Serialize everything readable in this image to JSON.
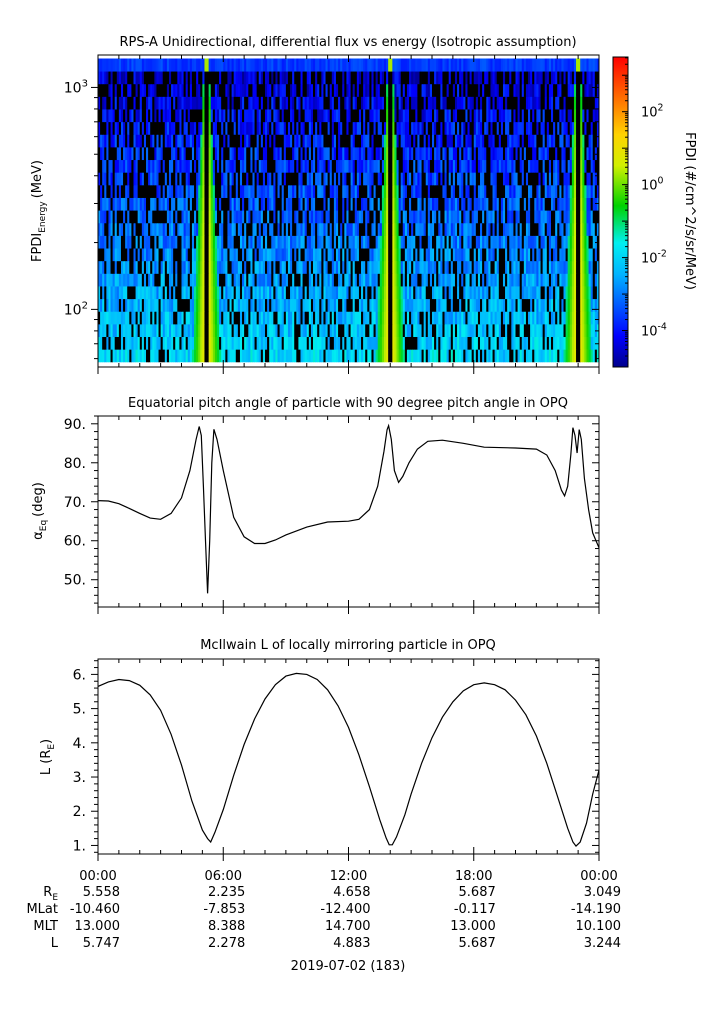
{
  "chart_data": [
    {
      "type": "heatmap",
      "title": "RPS-A Unidirectional, differential flux vs energy (Isotropic assumption)",
      "ylabel_main": "FPDI",
      "ylabel_sub": "Energy",
      "ylabel_unit": "(MeV)",
      "yscale": "log",
      "ylim": [
        55,
        1400
      ],
      "yticks": [
        {
          "value": 100,
          "base": "10",
          "exp": "2"
        },
        {
          "value": 1000,
          "base": "10",
          "exp": "3"
        }
      ],
      "xlim_hours": [
        0,
        24
      ],
      "energy_range": [
        58,
        1350
      ],
      "high_flux_times_hours": [
        5.2,
        14.0,
        23.0
      ],
      "colorbar": {
        "label": "FPDI (#/cm^2/s/sr/MeV)",
        "scale": "log",
        "range_log10": [
          -5,
          3.5
        ],
        "ticks": [
          {
            "value": -4,
            "base": "10",
            "exp": "-4"
          },
          {
            "value": -2,
            "base": "10",
            "exp": "-2"
          },
          {
            "value": 0,
            "base": "10",
            "exp": "0"
          },
          {
            "value": 2,
            "base": "10",
            "exp": "2"
          }
        ]
      }
    },
    {
      "type": "line",
      "title": "Equatorial pitch angle of particle with 90 degree pitch angle in OPQ",
      "ylabel_main": "α",
      "ylabel_sub": "Eq",
      "ylabel_unit": "(deg)",
      "ylim": [
        43,
        92
      ],
      "yticks": [
        "50.",
        "60.",
        "70.",
        "80.",
        "90."
      ],
      "xlim_hours": [
        0,
        24
      ],
      "points": [
        [
          0,
          70.3
        ],
        [
          0.5,
          70.2
        ],
        [
          1,
          69.5
        ],
        [
          1.5,
          68.3
        ],
        [
          2,
          67
        ],
        [
          2.5,
          65.8
        ],
        [
          3,
          65.5
        ],
        [
          3.5,
          67
        ],
        [
          4,
          71
        ],
        [
          4.4,
          78
        ],
        [
          4.7,
          86
        ],
        [
          4.85,
          89.3
        ],
        [
          4.95,
          87
        ],
        [
          5.05,
          74
        ],
        [
          5.15,
          60
        ],
        [
          5.25,
          46.5
        ],
        [
          5.35,
          60
        ],
        [
          5.45,
          80
        ],
        [
          5.55,
          88.6
        ],
        [
          5.7,
          86
        ],
        [
          6,
          78
        ],
        [
          6.5,
          66
        ],
        [
          7,
          61
        ],
        [
          7.5,
          59.3
        ],
        [
          8,
          59.3
        ],
        [
          8.5,
          60.2
        ],
        [
          9,
          61.5
        ],
        [
          10,
          63.5
        ],
        [
          11,
          64.8
        ],
        [
          12,
          65
        ],
        [
          12.5,
          65.5
        ],
        [
          13,
          68
        ],
        [
          13.4,
          74
        ],
        [
          13.7,
          83
        ],
        [
          13.85,
          88.5
        ],
        [
          13.92,
          89.5
        ],
        [
          14.05,
          86
        ],
        [
          14.2,
          78
        ],
        [
          14.4,
          75
        ],
        [
          14.6,
          76.5
        ],
        [
          14.9,
          80
        ],
        [
          15.3,
          83.5
        ],
        [
          15.8,
          85.5
        ],
        [
          16.5,
          85.8
        ],
        [
          17.5,
          85
        ],
        [
          18.5,
          84
        ],
        [
          20,
          83.8
        ],
        [
          21,
          83.5
        ],
        [
          21.5,
          82
        ],
        [
          21.9,
          78
        ],
        [
          22.2,
          73
        ],
        [
          22.35,
          71.5
        ],
        [
          22.5,
          74
        ],
        [
          22.65,
          82
        ],
        [
          22.75,
          89
        ],
        [
          22.85,
          87
        ],
        [
          22.95,
          82.5
        ],
        [
          23.05,
          88.5
        ],
        [
          23.15,
          86
        ],
        [
          23.3,
          76
        ],
        [
          23.5,
          68
        ],
        [
          23.7,
          62
        ],
        [
          24,
          58.2
        ]
      ]
    },
    {
      "type": "line",
      "title": "McIlwain L of locally mirroring particle in OPQ",
      "ylabel_main": "L (R",
      "ylabel_sub": "E",
      "ylabel_unit": ")",
      "ylim": [
        0.75,
        6.45
      ],
      "yticks": [
        "1.",
        "2.",
        "3.",
        "4.",
        "5.",
        "6."
      ],
      "xlim_hours": [
        0,
        24
      ],
      "points": [
        [
          0,
          5.65
        ],
        [
          0.5,
          5.78
        ],
        [
          1,
          5.85
        ],
        [
          1.5,
          5.82
        ],
        [
          2,
          5.68
        ],
        [
          2.5,
          5.4
        ],
        [
          3,
          4.95
        ],
        [
          3.5,
          4.25
        ],
        [
          4,
          3.35
        ],
        [
          4.5,
          2.3
        ],
        [
          5,
          1.45
        ],
        [
          5.25,
          1.2
        ],
        [
          5.4,
          1.1
        ],
        [
          5.6,
          1.38
        ],
        [
          6,
          2.05
        ],
        [
          6.5,
          3.05
        ],
        [
          7,
          3.95
        ],
        [
          7.5,
          4.7
        ],
        [
          8,
          5.28
        ],
        [
          8.5,
          5.7
        ],
        [
          9,
          5.95
        ],
        [
          9.5,
          6.03
        ],
        [
          10,
          6.0
        ],
        [
          10.5,
          5.85
        ],
        [
          11,
          5.55
        ],
        [
          11.5,
          5.08
        ],
        [
          12,
          4.45
        ],
        [
          12.5,
          3.65
        ],
        [
          13,
          2.72
        ],
        [
          13.5,
          1.75
        ],
        [
          13.8,
          1.22
        ],
        [
          13.95,
          1.02
        ],
        [
          14.1,
          1.02
        ],
        [
          14.3,
          1.25
        ],
        [
          14.7,
          1.9
        ],
        [
          15,
          2.5
        ],
        [
          15.5,
          3.4
        ],
        [
          16,
          4.15
        ],
        [
          16.5,
          4.75
        ],
        [
          17,
          5.2
        ],
        [
          17.5,
          5.52
        ],
        [
          18,
          5.7
        ],
        [
          18.5,
          5.75
        ],
        [
          19,
          5.7
        ],
        [
          19.5,
          5.55
        ],
        [
          20,
          5.25
        ],
        [
          20.5,
          4.82
        ],
        [
          21,
          4.2
        ],
        [
          21.5,
          3.4
        ],
        [
          22,
          2.45
        ],
        [
          22.5,
          1.5
        ],
        [
          22.75,
          1.1
        ],
        [
          22.9,
          0.98
        ],
        [
          23.1,
          1.1
        ],
        [
          23.4,
          1.65
        ],
        [
          23.7,
          2.5
        ],
        [
          24,
          3.2
        ]
      ]
    }
  ],
  "x_axis": {
    "tick_labels": [
      "00:00",
      "06:00",
      "12:00",
      "18:00",
      "00:00"
    ],
    "date_label": "2019-07-02 (183)"
  },
  "ephemeris": {
    "rows": [
      {
        "label": "R",
        "label_sub": "E",
        "values": [
          "5.558",
          "2.235",
          "4.658",
          "5.687",
          "3.049"
        ]
      },
      {
        "label": "MLat",
        "label_sub": "",
        "values": [
          "-10.460",
          "-7.853",
          "-12.400",
          "-0.117",
          "-14.190"
        ]
      },
      {
        "label": "MLT",
        "label_sub": "",
        "values": [
          "13.000",
          "8.388",
          "14.700",
          "13.000",
          "10.100"
        ]
      },
      {
        "label": "L",
        "label_sub": "",
        "values": [
          "5.747",
          "2.278",
          "4.883",
          "5.687",
          "3.244"
        ]
      }
    ]
  }
}
